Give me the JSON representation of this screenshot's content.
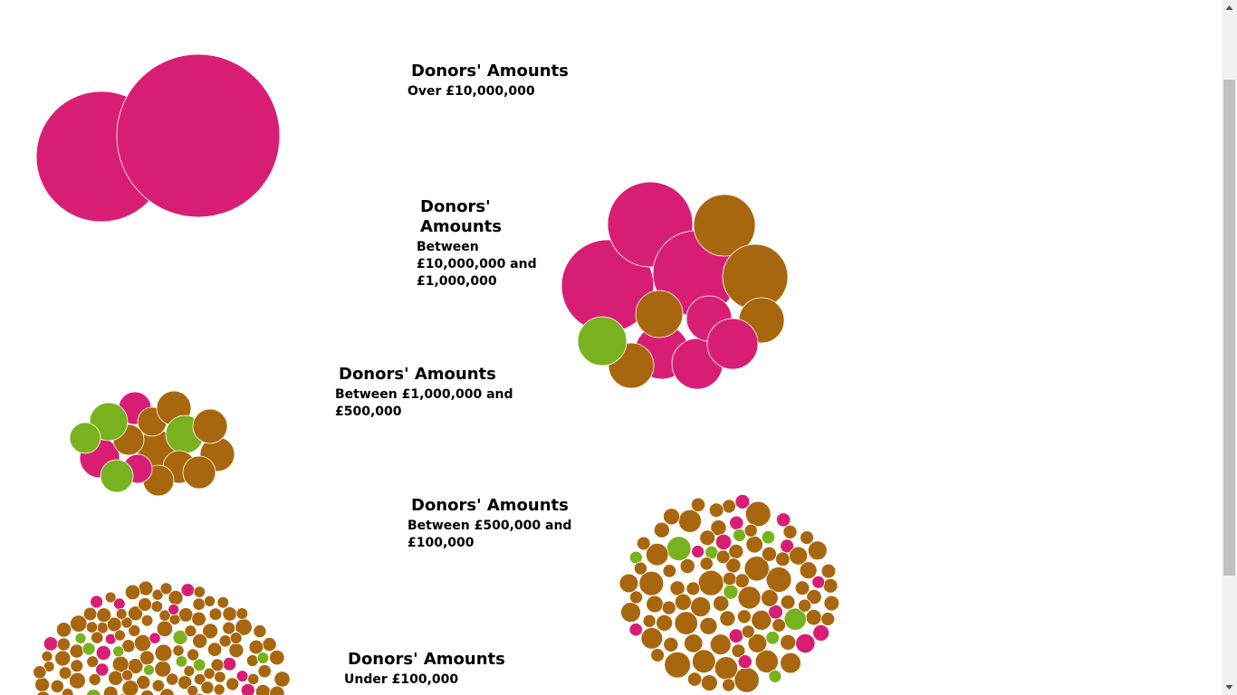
{
  "colors": {
    "magenta": "#d81e74",
    "brown": "#a8670e",
    "green": "#78b21e",
    "stroke": "#ffffff",
    "scroll_track": "#f1f1f1",
    "scroll_thumb": "#c1c1c1"
  },
  "groups": [
    {
      "id": "over-10m",
      "heading": "Donors' Amounts",
      "range": "Over £10,000,000",
      "donor_counts": {
        "magenta": 2,
        "brown": 0,
        "green": 0
      }
    },
    {
      "id": "10m-1m",
      "heading": "Donors' Amounts",
      "range": "Between £10,000,000 and £1,000,000",
      "donor_counts": {
        "magenta": 7,
        "brown": 6,
        "green": 1
      }
    },
    {
      "id": "1m-500k",
      "heading": "Donors' Amounts",
      "range": "Between £1,000,000 and £500,000",
      "donor_counts": {
        "magenta": 4,
        "brown": 9,
        "green": 5
      }
    },
    {
      "id": "500k-100k",
      "heading": "Donors' Amounts",
      "range": "Between £500,000 and £100,000",
      "donor_counts": {
        "magenta": 16,
        "brown": 140,
        "green": 13
      }
    },
    {
      "id": "under-100k",
      "heading": "Donors' Amounts",
      "range": "Under £100,000",
      "donor_counts": {
        "magenta": 38,
        "brown": 280,
        "green": 26
      }
    }
  ],
  "scrollbar": {
    "up_icon": "triangle-up-icon",
    "down_icon": "triangle-down-icon"
  }
}
